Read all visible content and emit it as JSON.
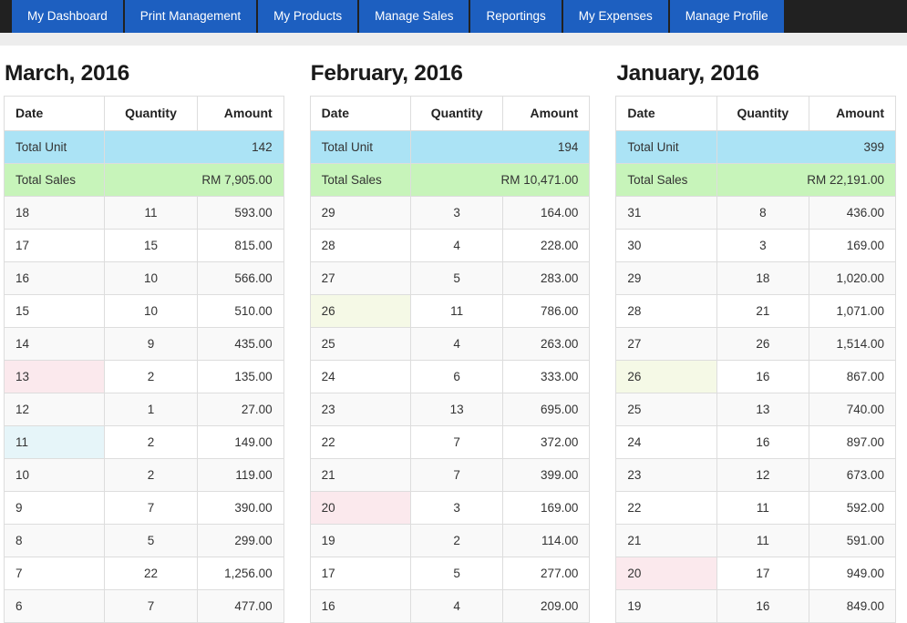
{
  "nav": {
    "items": [
      {
        "label": "My Dashboard"
      },
      {
        "label": "Print Management"
      },
      {
        "label": "My Products"
      },
      {
        "label": "Manage Sales"
      },
      {
        "label": "Reportings"
      },
      {
        "label": "My Expenses"
      },
      {
        "label": "Manage Profile"
      }
    ]
  },
  "columns": {
    "date": "Date",
    "quantity": "Quantity",
    "amount": "Amount"
  },
  "months": [
    {
      "title": "March, 2016",
      "total_unit_label": "Total Unit",
      "total_unit_value": "142",
      "total_sales_label": "Total Sales",
      "total_sales_value": "RM 7,905.00",
      "rows": [
        {
          "date": "18",
          "quantity": "11",
          "amount": "593.00",
          "hl": "blue"
        },
        {
          "date": "17",
          "quantity": "15",
          "amount": "815.00",
          "hl": ""
        },
        {
          "date": "16",
          "quantity": "10",
          "amount": "566.00",
          "hl": ""
        },
        {
          "date": "15",
          "quantity": "10",
          "amount": "510.00",
          "hl": ""
        },
        {
          "date": "14",
          "quantity": "9",
          "amount": "435.00",
          "hl": ""
        },
        {
          "date": "13",
          "quantity": "2",
          "amount": "135.00",
          "hl": "pink"
        },
        {
          "date": "12",
          "quantity": "1",
          "amount": "27.00",
          "hl": "yellow"
        },
        {
          "date": "11",
          "quantity": "2",
          "amount": "149.00",
          "hl": "blue"
        },
        {
          "date": "10",
          "quantity": "2",
          "amount": "119.00",
          "hl": ""
        },
        {
          "date": "9",
          "quantity": "7",
          "amount": "390.00",
          "hl": ""
        },
        {
          "date": "8",
          "quantity": "5",
          "amount": "299.00",
          "hl": ""
        },
        {
          "date": "7",
          "quantity": "22",
          "amount": "1,256.00",
          "hl": ""
        },
        {
          "date": "6",
          "quantity": "7",
          "amount": "477.00",
          "hl": "pink"
        }
      ]
    },
    {
      "title": "February, 2016",
      "total_unit_label": "Total Unit",
      "total_unit_value": "194",
      "total_sales_label": "Total Sales",
      "total_sales_value": "RM 10,471.00",
      "rows": [
        {
          "date": "29",
          "quantity": "3",
          "amount": "164.00",
          "hl": ""
        },
        {
          "date": "28",
          "quantity": "4",
          "amount": "228.00",
          "hl": ""
        },
        {
          "date": "27",
          "quantity": "5",
          "amount": "283.00",
          "hl": "pink"
        },
        {
          "date": "26",
          "quantity": "11",
          "amount": "786.00",
          "hl": "yellow"
        },
        {
          "date": "25",
          "quantity": "4",
          "amount": "263.00",
          "hl": "blue"
        },
        {
          "date": "24",
          "quantity": "6",
          "amount": "333.00",
          "hl": ""
        },
        {
          "date": "23",
          "quantity": "13",
          "amount": "695.00",
          "hl": ""
        },
        {
          "date": "22",
          "quantity": "7",
          "amount": "372.00",
          "hl": ""
        },
        {
          "date": "21",
          "quantity": "7",
          "amount": "399.00",
          "hl": ""
        },
        {
          "date": "20",
          "quantity": "3",
          "amount": "169.00",
          "hl": "pink"
        },
        {
          "date": "19",
          "quantity": "2",
          "amount": "114.00",
          "hl": "yellow"
        },
        {
          "date": "17",
          "quantity": "5",
          "amount": "277.00",
          "hl": ""
        },
        {
          "date": "16",
          "quantity": "4",
          "amount": "209.00",
          "hl": ""
        }
      ]
    },
    {
      "title": "January, 2016",
      "total_unit_label": "Total Unit",
      "total_unit_value": "399",
      "total_sales_label": "Total Sales",
      "total_sales_value": "RM 22,191.00",
      "rows": [
        {
          "date": "31",
          "quantity": "8",
          "amount": "436.00",
          "hl": ""
        },
        {
          "date": "30",
          "quantity": "3",
          "amount": "169.00",
          "hl": ""
        },
        {
          "date": "29",
          "quantity": "18",
          "amount": "1,020.00",
          "hl": ""
        },
        {
          "date": "28",
          "quantity": "21",
          "amount": "1,071.00",
          "hl": ""
        },
        {
          "date": "27",
          "quantity": "26",
          "amount": "1,514.00",
          "hl": "pink"
        },
        {
          "date": "26",
          "quantity": "16",
          "amount": "867.00",
          "hl": "yellow"
        },
        {
          "date": "25",
          "quantity": "13",
          "amount": "740.00",
          "hl": "blue"
        },
        {
          "date": "24",
          "quantity": "16",
          "amount": "897.00",
          "hl": ""
        },
        {
          "date": "23",
          "quantity": "12",
          "amount": "673.00",
          "hl": ""
        },
        {
          "date": "22",
          "quantity": "11",
          "amount": "592.00",
          "hl": ""
        },
        {
          "date": "21",
          "quantity": "11",
          "amount": "591.00",
          "hl": ""
        },
        {
          "date": "20",
          "quantity": "17",
          "amount": "949.00",
          "hl": "pink"
        },
        {
          "date": "19",
          "quantity": "16",
          "amount": "849.00",
          "hl": "yellow"
        }
      ]
    }
  ],
  "colors": {
    "nav_background": "#212121",
    "nav_tab": "#1d5fc0",
    "subbar": "#ededed",
    "total_unit_bg": "#abe3f5",
    "total_sales_bg": "#c7f4ba",
    "date_highlight_pink": "#fbe9ed",
    "date_highlight_yellow": "#f5f9e6",
    "date_highlight_blue": "#e6f5f9",
    "row_stripe": "#f9f9f9",
    "table_border": "#dddddd"
  }
}
